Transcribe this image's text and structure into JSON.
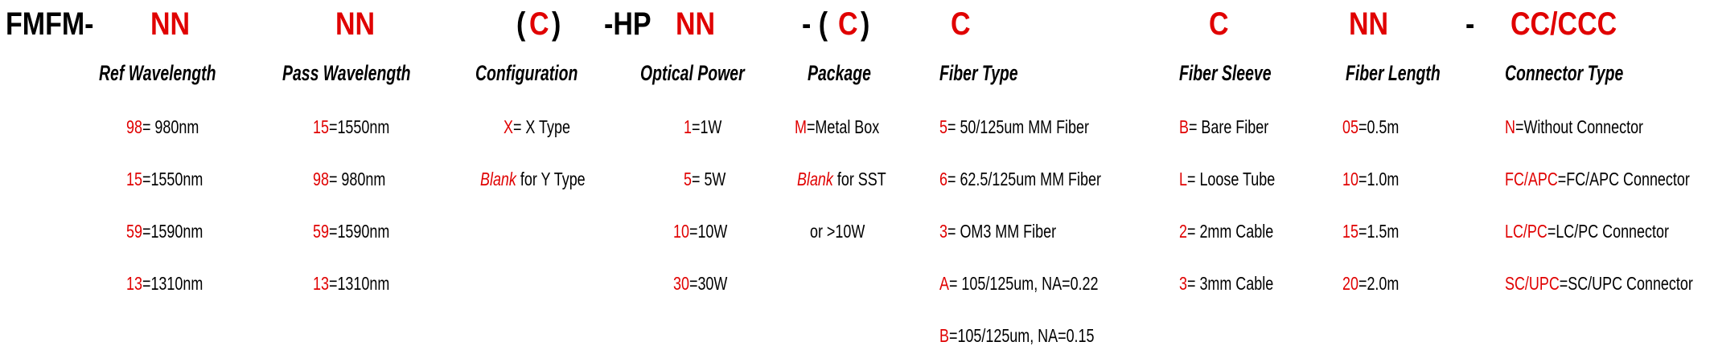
{
  "code": {
    "prefix": "FMFM-",
    "ref_wavelength": "NN",
    "pass_wavelength": "NN",
    "configuration_open": "(",
    "configuration": "C",
    "configuration_close": ")",
    "hp": "-HP",
    "optical_power": "NN",
    "package_open": "- (",
    "package": "C",
    "package_close": ")",
    "fiber_type": "C",
    "fiber_sleeve": "C",
    "fiber_length": "NN",
    "dash": "-",
    "connector": "CC/CCC"
  },
  "colors": {
    "code": "#e00000",
    "text": "#000000"
  },
  "columns": [
    {
      "heading": "Ref Wavelength",
      "items": [
        {
          "code": "98",
          "text": "= 980nm"
        },
        {
          "code": "15",
          "text": "=1550nm"
        },
        {
          "code": "59",
          "text": "=1590nm"
        },
        {
          "code": "13",
          "text": "=1310nm"
        }
      ]
    },
    {
      "heading": "Pass Wavelength",
      "items": [
        {
          "code": "15",
          "text": "=1550nm"
        },
        {
          "code": "98",
          "text": "= 980nm"
        },
        {
          "code": "59",
          "text": "=1590nm"
        },
        {
          "code": "13",
          "text": "=1310nm"
        }
      ]
    },
    {
      "heading": "Configuration",
      "items": [
        {
          "code": "X",
          "text": "= X Type"
        },
        {
          "code": "Blank",
          "italic": true,
          "text": " for Y Type"
        }
      ]
    },
    {
      "heading": "Optical Power",
      "items": [
        {
          "code": "1",
          "text": "=1W"
        },
        {
          "code": "5",
          "text": "= 5W"
        },
        {
          "code": "10",
          "text": "=10W"
        },
        {
          "code": "30",
          "text": "=30W"
        }
      ]
    },
    {
      "heading": "Package",
      "items": [
        {
          "code": "M",
          "text": "=Metal Box"
        },
        {
          "code": "Blank",
          "italic": true,
          "text": " for SST"
        },
        {
          "code": "",
          "text": "or >10W"
        }
      ]
    },
    {
      "heading": "Fiber Type",
      "items": [
        {
          "code": "5",
          "text": "= 50/125um MM Fiber"
        },
        {
          "code": "6",
          "text": "= 62.5/125um MM Fiber"
        },
        {
          "code": "3",
          "text": "= OM3 MM Fiber"
        },
        {
          "code": "A",
          "text": "= 105/125um, NA=0.22"
        },
        {
          "code": "B",
          "text": "=105/125um, NA=0.15"
        }
      ]
    },
    {
      "heading": "Fiber Sleeve",
      "items": [
        {
          "code": "B",
          "text": "= Bare Fiber"
        },
        {
          "code": "L",
          "text": "= Loose Tube"
        },
        {
          "code": "2",
          "text": "= 2mm Cable"
        },
        {
          "code": "3",
          "text": "= 3mm Cable"
        }
      ]
    },
    {
      "heading": "Fiber Length",
      "items": [
        {
          "code": "05",
          "text": "=0.5m"
        },
        {
          "code": "10",
          "text": "=1.0m"
        },
        {
          "code": "15",
          "text": "=1.5m"
        },
        {
          "code": "20",
          "text": "=2.0m"
        }
      ]
    },
    {
      "heading": "Connector Type",
      "items": [
        {
          "code": "N",
          "text": "=Without Connector"
        },
        {
          "code": "FC/APC",
          "text": "=FC/APC Connector"
        },
        {
          "code": "LC/PC",
          "text": "=LC/PC Connector"
        },
        {
          "code": "SC/UPC",
          "text": "=SC/UPC Connector"
        }
      ]
    }
  ]
}
